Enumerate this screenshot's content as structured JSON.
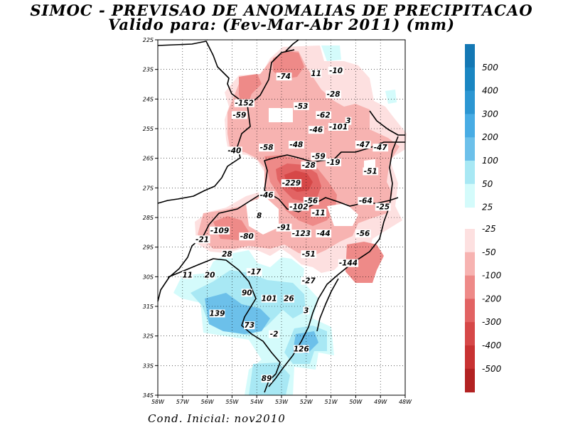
{
  "header": {
    "title_line1": "SIMOC - PREVISAO DE ANOMALIAS DE PRECIPITACAO",
    "title_line2": "Valido para: (Fev-Mar-Abr 2011) (mm)"
  },
  "footer": {
    "initial_condition": "Cond. Inicial: nov2010"
  },
  "colors": {
    "neg_25_50": "#fde0e0",
    "neg_50_100": "#f7b3b1",
    "neg_100_200": "#ee8a88",
    "neg_200_300": "#e26363",
    "neg_300_400": "#d64848",
    "neg_400_500": "#c83232",
    "neg_500": "#b22222",
    "pos_25_50": "#d4fbfb",
    "pos_50_100": "#a8e8f4",
    "pos_100_200": "#6cc0ea",
    "pos_200_300": "#48ace4",
    "pos_300_400": "#2c96d2",
    "pos_400_500": "#1a86c2",
    "pos_500": "#1478b4"
  },
  "chart_data": {
    "type": "heatmap",
    "title": "SIMOC - PREVISAO DE ANOMALIAS DE PRECIPITACAO",
    "subtitle": "Valido para: (Fev-Mar-Abr 2011) (mm)",
    "units": "mm",
    "x_range": [
      -58,
      -48
    ],
    "y_range": [
      -34,
      -22
    ],
    "x_ticks": [
      "58W",
      "57W",
      "56W",
      "55W",
      "54W",
      "53W",
      "52W",
      "51W",
      "50W",
      "49W",
      "48W"
    ],
    "y_ticks": [
      "22S",
      "23S",
      "24S",
      "25S",
      "26S",
      "27S",
      "28S",
      "29S",
      "30S",
      "31S",
      "32S",
      "33S",
      "34S"
    ],
    "legend_positive": [
      "500",
      "400",
      "300",
      "200",
      "100",
      "50",
      "25"
    ],
    "legend_negative": [
      "-25",
      "-50",
      "-100",
      "-200",
      "-300",
      "-400",
      "-500"
    ],
    "point_values": [
      {
        "lon": -52.9,
        "lat": -23.3,
        "text": "-74"
      },
      {
        "lon": -51.6,
        "lat": -23.2,
        "text": "11"
      },
      {
        "lon": -50.8,
        "lat": -23.1,
        "text": "-10"
      },
      {
        "lon": -50.9,
        "lat": -23.9,
        "text": "-28"
      },
      {
        "lon": -54.5,
        "lat": -24.2,
        "text": "-152"
      },
      {
        "lon": -52.2,
        "lat": -24.3,
        "text": "-53"
      },
      {
        "lon": -54.7,
        "lat": -24.6,
        "text": "-59"
      },
      {
        "lon": -51.3,
        "lat": -24.6,
        "text": "-62"
      },
      {
        "lon": -50.3,
        "lat": -24.8,
        "text": "3"
      },
      {
        "lon": -50.7,
        "lat": -25.0,
        "text": "-101"
      },
      {
        "lon": -51.6,
        "lat": -25.1,
        "text": "-46"
      },
      {
        "lon": -53.6,
        "lat": -25.7,
        "text": "-58"
      },
      {
        "lon": -52.4,
        "lat": -25.6,
        "text": "-48"
      },
      {
        "lon": -49.7,
        "lat": -25.6,
        "text": "-47"
      },
      {
        "lon": -49.0,
        "lat": -25.7,
        "text": "-47"
      },
      {
        "lon": -54.9,
        "lat": -25.8,
        "text": "-40"
      },
      {
        "lon": -51.5,
        "lat": -26.0,
        "text": "-59"
      },
      {
        "lon": -50.9,
        "lat": -26.2,
        "text": "-19"
      },
      {
        "lon": -51.9,
        "lat": -26.3,
        "text": "-28"
      },
      {
        "lon": -49.4,
        "lat": -26.5,
        "text": "-51"
      },
      {
        "lon": -52.6,
        "lat": -26.9,
        "text": "-229"
      },
      {
        "lon": -53.6,
        "lat": -27.3,
        "text": "-46"
      },
      {
        "lon": -51.8,
        "lat": -27.5,
        "text": "-56"
      },
      {
        "lon": -52.3,
        "lat": -27.7,
        "text": "-102"
      },
      {
        "lon": -49.6,
        "lat": -27.5,
        "text": "-64"
      },
      {
        "lon": -48.9,
        "lat": -27.7,
        "text": "-25"
      },
      {
        "lon": -51.5,
        "lat": -27.9,
        "text": "-11"
      },
      {
        "lon": -53.9,
        "lat": -28.0,
        "text": "8"
      },
      {
        "lon": -55.5,
        "lat": -28.5,
        "text": "-109"
      },
      {
        "lon": -52.9,
        "lat": -28.4,
        "text": "-91"
      },
      {
        "lon": -52.2,
        "lat": -28.6,
        "text": "-123"
      },
      {
        "lon": -51.3,
        "lat": -28.6,
        "text": "-44"
      },
      {
        "lon": -49.7,
        "lat": -28.6,
        "text": "-56"
      },
      {
        "lon": -56.2,
        "lat": -28.8,
        "text": "-21"
      },
      {
        "lon": -54.4,
        "lat": -28.7,
        "text": "-80"
      },
      {
        "lon": -51.9,
        "lat": -29.3,
        "text": "-51"
      },
      {
        "lon": -55.2,
        "lat": -29.3,
        "text": "28"
      },
      {
        "lon": -50.3,
        "lat": -29.6,
        "text": "-144"
      },
      {
        "lon": -54.1,
        "lat": -29.9,
        "text": "-17"
      },
      {
        "lon": -56.8,
        "lat": -30.0,
        "text": "11"
      },
      {
        "lon": -55.9,
        "lat": -30.0,
        "text": "20"
      },
      {
        "lon": -51.9,
        "lat": -30.2,
        "text": "-27"
      },
      {
        "lon": -54.4,
        "lat": -30.6,
        "text": "90"
      },
      {
        "lon": -53.5,
        "lat": -30.8,
        "text": "101"
      },
      {
        "lon": -52.7,
        "lat": -30.8,
        "text": "26"
      },
      {
        "lon": -55.6,
        "lat": -31.3,
        "text": "139"
      },
      {
        "lon": -52.0,
        "lat": -31.2,
        "text": "3"
      },
      {
        "lon": -54.3,
        "lat": -31.7,
        "text": "73"
      },
      {
        "lon": -53.3,
        "lat": -32.0,
        "text": "-2"
      },
      {
        "lon": -52.2,
        "lat": -32.5,
        "text": "126"
      },
      {
        "lon": -53.6,
        "lat": -33.5,
        "text": "89"
      }
    ]
  }
}
